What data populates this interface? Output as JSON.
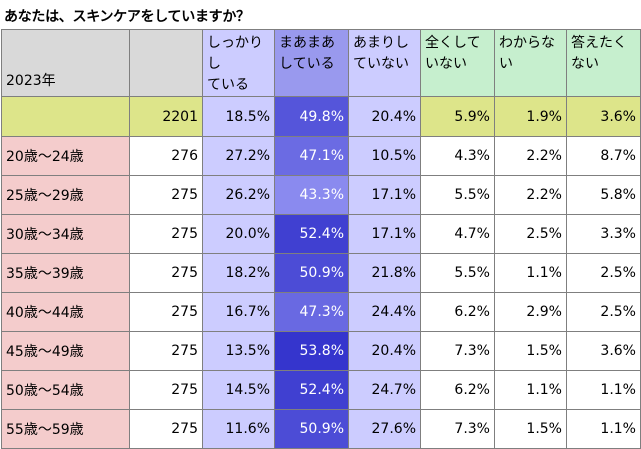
{
  "title": "あなたは、スキンケアをしていますか？",
  "colors": {
    "header_gray": "#d9d9d9",
    "header_green": "#c6efce",
    "age_label_pink": "#f4cccc",
    "total_row_yellow": "#dde58a",
    "shikkari": "#ccccff",
    "amari": "#ccccff",
    "maamaa_scale_low": "#8c8cf0",
    "maamaa_scale_high": "#3333cc",
    "green_cols": "#c6efce",
    "total_green": "#dde58a"
  },
  "chart_data": {
    "type": "table",
    "title": "あなたは、スキンケアをしていますか？",
    "year_label": "2023年",
    "columns": [
      "しっかりしている",
      "まあまあしている",
      "あまりしていない",
      "全くしていない",
      "わからない",
      "答えたくない"
    ],
    "column_display": [
      [
        "しっかりし",
        "ている"
      ],
      [
        "まあまあ",
        "している"
      ],
      [
        "あまりし",
        "ていない"
      ],
      [
        "全くして",
        "いない"
      ],
      [
        "わからな",
        "い"
      ],
      [
        "答えたく",
        "ない"
      ]
    ],
    "total": {
      "label": "",
      "n": 2201,
      "values": [
        "18.5%",
        "49.8%",
        "20.4%",
        "5.9%",
        "1.9%",
        "3.6%"
      ]
    },
    "rows": [
      {
        "label": "20歳～24歳",
        "n": 276,
        "values": [
          "27.2%",
          "47.1%",
          "10.5%",
          "4.3%",
          "2.2%",
          "8.7%"
        ]
      },
      {
        "label": "25歳～29歳",
        "n": 275,
        "values": [
          "26.2%",
          "43.3%",
          "17.1%",
          "5.5%",
          "2.2%",
          "5.8%"
        ]
      },
      {
        "label": "30歳～34歳",
        "n": 275,
        "values": [
          "20.0%",
          "52.4%",
          "17.1%",
          "4.7%",
          "2.5%",
          "3.3%"
        ]
      },
      {
        "label": "35歳～39歳",
        "n": 275,
        "values": [
          "18.2%",
          "50.9%",
          "21.8%",
          "5.5%",
          "1.1%",
          "2.5%"
        ]
      },
      {
        "label": "40歳～44歳",
        "n": 275,
        "values": [
          "16.7%",
          "47.3%",
          "24.4%",
          "6.2%",
          "2.9%",
          "2.5%"
        ]
      },
      {
        "label": "45歳～49歳",
        "n": 275,
        "values": [
          "13.5%",
          "53.8%",
          "20.4%",
          "7.3%",
          "1.5%",
          "3.6%"
        ]
      },
      {
        "label": "50歳～54歳",
        "n": 275,
        "values": [
          "14.5%",
          "52.4%",
          "24.7%",
          "6.2%",
          "1.1%",
          "1.1%"
        ]
      },
      {
        "label": "55歳～59歳",
        "n": 275,
        "values": [
          "11.6%",
          "50.9%",
          "27.6%",
          "7.3%",
          "1.5%",
          "1.1%"
        ]
      }
    ]
  }
}
